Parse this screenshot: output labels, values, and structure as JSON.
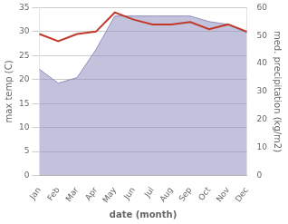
{
  "chart_data": {
    "type": "line",
    "xlabel": "date (month)",
    "ylabel": "max temp (C)",
    "y2label": "med. precipitation (kg/m2)",
    "categories": [
      "Jan",
      "Feb",
      "Mar",
      "Apr",
      "May",
      "Jun",
      "Jul",
      "Aug",
      "Sep",
      "Oct",
      "Nov",
      "Dec"
    ],
    "series": [
      {
        "type": "area",
        "axis": "y2",
        "color": "#9090c0",
        "values": [
          38,
          33,
          35,
          45,
          57,
          57,
          57,
          57,
          57,
          55,
          54,
          51
        ]
      },
      {
        "type": "line",
        "color": "#c0392b",
        "values": [
          29.5,
          28.0,
          29.5,
          30.0,
          34.0,
          32.5,
          31.5,
          31.5,
          32.0,
          30.5,
          31.5,
          30.0
        ]
      }
    ],
    "ylim": [
      0,
      35
    ],
    "yticks": [
      0,
      5,
      10,
      15,
      20,
      25,
      30,
      35
    ],
    "y2lim": [
      0,
      60
    ],
    "y2ticks": [
      0,
      10,
      20,
      30,
      40,
      50,
      60
    ],
    "grid": true
  }
}
